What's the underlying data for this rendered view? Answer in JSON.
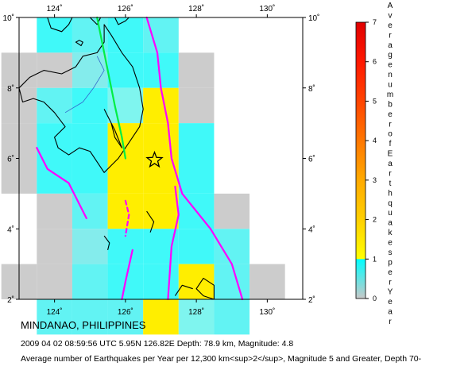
{
  "map": {
    "region": "MINDANAO, PHILIPPINES",
    "lon_ticks": [
      "124˚",
      "126˚",
      "128˚",
      "130˚"
    ],
    "lat_ticks": [
      "10˚",
      "8˚",
      "6˚",
      "4˚",
      "2˚"
    ],
    "lon_range": [
      123,
      131
    ],
    "lat_range": [
      2,
      10
    ],
    "event": {
      "lon": 126.82,
      "lat": 5.95,
      "marker": "star-icon"
    },
    "grid_cells": [
      {
        "lon": 124,
        "lat": 9.5,
        "v": 0.9
      },
      {
        "lon": 125,
        "lat": 9.5,
        "v": 0.8
      },
      {
        "lon": 126,
        "lat": 9.5,
        "v": 0.9
      },
      {
        "lon": 127,
        "lat": 9.5,
        "v": 0.8
      },
      {
        "lon": 123,
        "lat": 8.5,
        "v": 0.4
      },
      {
        "lon": 124,
        "lat": 8.5,
        "v": 0.3
      },
      {
        "lon": 125,
        "lat": 8.5,
        "v": 0.7
      },
      {
        "lon": 126,
        "lat": 8.5,
        "v": 0.9
      },
      {
        "lon": 127,
        "lat": 8.5,
        "v": 0.9
      },
      {
        "lon": 128,
        "lat": 8.5,
        "v": 0.2
      },
      {
        "lon": 123,
        "lat": 7.5,
        "v": 0.3
      },
      {
        "lon": 124,
        "lat": 7.5,
        "v": 0.8
      },
      {
        "lon": 125,
        "lat": 7.5,
        "v": 0.9
      },
      {
        "lon": 126,
        "lat": 7.5,
        "v": 1.0
      },
      {
        "lon": 127,
        "lat": 7.5,
        "v": 1.9
      },
      {
        "lon": 128,
        "lat": 7.5,
        "v": 0.2
      },
      {
        "lon": 123,
        "lat": 6.5,
        "v": 0.3
      },
      {
        "lon": 124,
        "lat": 6.5,
        "v": 0.9
      },
      {
        "lon": 125,
        "lat": 6.5,
        "v": 0.9
      },
      {
        "lon": 126,
        "lat": 6.5,
        "v": 1.9
      },
      {
        "lon": 127,
        "lat": 6.5,
        "v": 1.9
      },
      {
        "lon": 128,
        "lat": 6.5,
        "v": 0.9
      },
      {
        "lon": 123,
        "lat": 5.5,
        "v": 0.3
      },
      {
        "lon": 124,
        "lat": 5.5,
        "v": 0.9
      },
      {
        "lon": 125,
        "lat": 5.5,
        "v": 0.9
      },
      {
        "lon": 126,
        "lat": 5.5,
        "v": 1.9
      },
      {
        "lon": 127,
        "lat": 5.5,
        "v": 1.9
      },
      {
        "lon": 128,
        "lat": 5.5,
        "v": 0.9
      },
      {
        "lon": 124,
        "lat": 4.5,
        "v": 0.3
      },
      {
        "lon": 125,
        "lat": 4.5,
        "v": 0.8
      },
      {
        "lon": 126,
        "lat": 4.5,
        "v": 1.9
      },
      {
        "lon": 127,
        "lat": 4.5,
        "v": 1.9
      },
      {
        "lon": 128,
        "lat": 4.5,
        "v": 0.9
      },
      {
        "lon": 129,
        "lat": 4.5,
        "v": 0.3
      },
      {
        "lon": 124,
        "lat": 3.5,
        "v": 0.3
      },
      {
        "lon": 125,
        "lat": 3.5,
        "v": 0.7
      },
      {
        "lon": 126,
        "lat": 3.5,
        "v": 0.9
      },
      {
        "lon": 127,
        "lat": 3.5,
        "v": 0.9
      },
      {
        "lon": 128,
        "lat": 3.5,
        "v": 0.9
      },
      {
        "lon": 129,
        "lat": 3.5,
        "v": 0.8
      },
      {
        "lon": 123,
        "lat": 2.5,
        "v": 0.3
      },
      {
        "lon": 124,
        "lat": 2.5,
        "v": 0.3
      },
      {
        "lon": 125,
        "lat": 2.5,
        "v": 0.8
      },
      {
        "lon": 126,
        "lat": 2.5,
        "v": 0.9
      },
      {
        "lon": 127,
        "lat": 2.5,
        "v": 0.9
      },
      {
        "lon": 128,
        "lat": 2.5,
        "v": 1.9
      },
      {
        "lon": 129,
        "lat": 2.5,
        "v": 0.8
      },
      {
        "lon": 130,
        "lat": 2.5,
        "v": 0.2
      },
      {
        "lon": 124,
        "lat": 1.5,
        "v": 0.8
      },
      {
        "lon": 125,
        "lat": 1.5,
        "v": 0.8
      },
      {
        "lon": 126,
        "lat": 1.5,
        "v": 0.8
      },
      {
        "lon": 127,
        "lat": 1.5,
        "v": 1.9
      },
      {
        "lon": 128,
        "lat": 1.5,
        "v": 1.0
      },
      {
        "lon": 129,
        "lat": 1.5,
        "v": 0.8
      }
    ]
  },
  "colorbar": {
    "ticks": [
      "0",
      "1",
      "2",
      "3",
      "4",
      "5",
      "6",
      "7"
    ],
    "range": [
      0,
      7
    ],
    "title_chars": [
      "A",
      "v",
      "e",
      "r",
      "a",
      "g",
      "e",
      "n",
      "u",
      "m",
      "b",
      "e",
      "r",
      "o",
      "f",
      "E",
      "a",
      "r",
      "t",
      "h",
      "q",
      "u",
      "a",
      "k",
      "e",
      "s",
      "p",
      "e",
      "r",
      "Y",
      "e",
      "a",
      "r"
    ],
    "stops": [
      {
        "v": 0,
        "color": "#c8c8c8"
      },
      {
        "v": 1,
        "color": "#00ffff"
      },
      {
        "v": 1.001,
        "color": "#ffff00"
      },
      {
        "v": 2,
        "color": "#ffd000"
      },
      {
        "v": 3,
        "color": "#ffaa00"
      },
      {
        "v": 4,
        "color": "#ff7700"
      },
      {
        "v": 5,
        "color": "#ff4400"
      },
      {
        "v": 6,
        "color": "#ff1800"
      },
      {
        "v": 7,
        "color": "#e00000"
      }
    ]
  },
  "captions": {
    "title": "MINDANAO, PHILIPPINES",
    "event": "2009 04 02 08:59:56 UTC 5.95N 126.82E Depth: 78.9 km, Magnitude: 4.8",
    "average": "Average number of Earthquakes per Year per 12,300 km<sup>2</sup>, Magnitude 5 and Greater, Depth 70-"
  },
  "colors": {
    "fault": "#ff00ff",
    "plate_boundary": "#00ee44",
    "river": "#3366cc",
    "coast": "#000000"
  }
}
